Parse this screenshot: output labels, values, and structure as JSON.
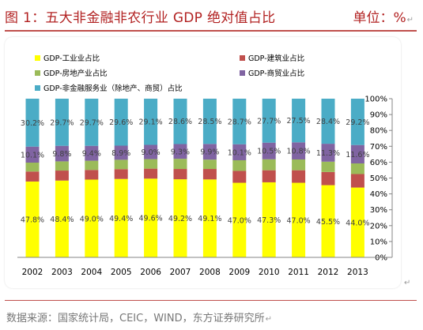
{
  "header": {
    "title": "图 1：五大非金融非农行业 GDP 绝对值占比",
    "unit": "单位：%"
  },
  "paragraph_mark": "↵",
  "source": "数据来源：国家统计局，CEIC，WIND，东方证券研究所",
  "chart_data": {
    "type": "bar",
    "stacked": true,
    "categories": [
      "2002",
      "2003",
      "2004",
      "2005",
      "2006",
      "2007",
      "2008",
      "2009",
      "2010",
      "2011",
      "2012",
      "2013"
    ],
    "series": [
      {
        "name": "GDP-工业业占比",
        "color": "#ffff00",
        "labelled": true,
        "values": [
          47.8,
          48.4,
          49.0,
          49.4,
          49.6,
          49.2,
          49.1,
          47.0,
          47.3,
          47.0,
          45.5,
          44.0
        ]
      },
      {
        "name": "GDP-建筑业占比",
        "color": "#c0504d",
        "labelled": false,
        "values": [
          6.3,
          6.3,
          6.1,
          6.2,
          6.3,
          6.5,
          6.6,
          7.5,
          7.6,
          7.9,
          8.3,
          8.5
        ]
      },
      {
        "name": "GDP-房地产业占比",
        "color": "#9bbb59",
        "labelled": false,
        "values": [
          5.6,
          5.8,
          5.8,
          5.9,
          6.0,
          6.4,
          5.9,
          6.7,
          6.9,
          6.8,
          6.5,
          6.7
        ]
      },
      {
        "name": "GDP-商贸业占比",
        "color": "#8064a2",
        "labelled": true,
        "values": [
          10.1,
          9.8,
          9.4,
          8.9,
          9.0,
          9.3,
          9.9,
          10.1,
          10.5,
          10.8,
          11.3,
          11.6
        ]
      },
      {
        "name": "GDP-非金融服务业（除地产、商贸）占比",
        "color": "#4bacc6",
        "labelled": true,
        "values": [
          30.2,
          29.7,
          29.7,
          29.6,
          29.1,
          28.6,
          28.5,
          28.7,
          27.7,
          27.5,
          28.4,
          29.2
        ]
      }
    ],
    "ylim": [
      0,
      100
    ],
    "yticks": [
      "0%",
      "10%",
      "20%",
      "30%",
      "40%",
      "50%",
      "60%",
      "70%",
      "80%",
      "90%",
      "100%"
    ],
    "legend_position": "top",
    "grid": false
  }
}
